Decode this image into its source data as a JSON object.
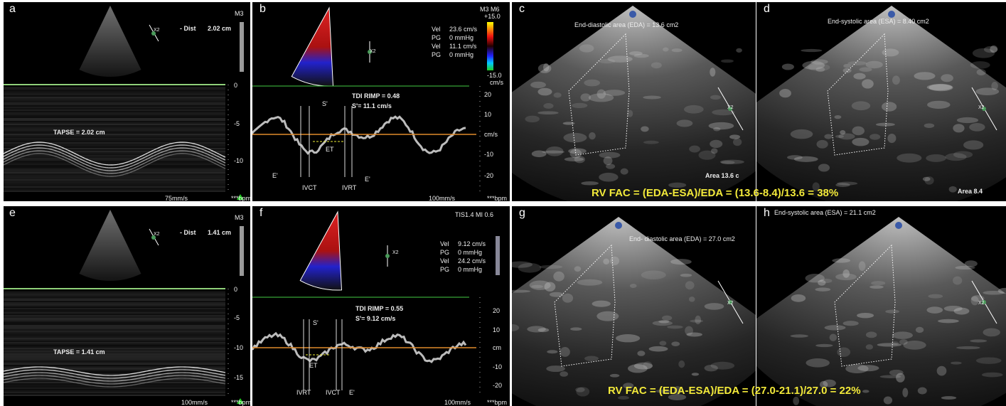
{
  "panels": [
    {
      "label": "a",
      "mode": "M3",
      "dist_label": "- Dist",
      "dist_value": "2.02 cm",
      "x2": "X2",
      "measure": "TAPSE = 2.02 cm",
      "depth_ticks": [
        "0",
        "-5",
        "-10"
      ],
      "sweep": "75mm/s",
      "bpm": "***bpm"
    },
    {
      "label": "b",
      "mode": "M3 M6",
      "scale_top": "+15.0",
      "scale_bottom": "-15.0",
      "scale_unit": "cm/s",
      "x2": "X2",
      "readouts": [
        [
          "Vel",
          "23.6 cm/s"
        ],
        [
          "PG",
          "0 mmHg"
        ],
        [
          "Vel",
          "11.1 cm/s"
        ],
        [
          "PG",
          "0 mmHg"
        ]
      ],
      "tdi": "TDI RIMP = 0.48",
      "s_prime": "S'= 11.1 cm/s",
      "waves": [
        "S'",
        "E'",
        "IVCT",
        "ET",
        "IVRT",
        "E'"
      ],
      "vel_ticks": [
        "20",
        "10",
        "cm/s",
        "-10",
        "-20"
      ],
      "sweep": "100mm/s",
      "bpm": "***bpm"
    },
    {
      "label": "c",
      "area_title": "End-diastolic area (EDA) = 13.6 cm2",
      "area": "Area 13.6 c",
      "x2": "X2"
    },
    {
      "label": "d",
      "area_title": "End-systolic area (ESA) = 8.40 cm2",
      "area": "Area 8.4",
      "x2": "X2"
    },
    {
      "label": "e",
      "mode": "M3",
      "dist_label": "- Dist",
      "dist_value": "1.41 cm",
      "x2": "X2",
      "measure": "TAPSE = 1.41 cm",
      "depth_ticks": [
        "0",
        "-5",
        "-10",
        "-15"
      ],
      "sweep": "100mm/s",
      "bpm": "***bpm"
    },
    {
      "label": "f",
      "mode": "TIS1.4  MI 0.6",
      "x2": "X2",
      "readouts": [
        [
          "Vel",
          "9.12 cm/s"
        ],
        [
          "PG",
          "0 mmHg"
        ],
        [
          "Vel",
          "24.2 cm/s"
        ],
        [
          "PG",
          "0 mmHg"
        ]
      ],
      "tdi": "TDI RIMP = 0.55",
      "s_prime": "S'= 9.12 cm/s",
      "waves": [
        "S'",
        "ET",
        "IVRT",
        "IVCT",
        "E'"
      ],
      "vel_ticks": [
        "20",
        "10",
        "cm",
        "-10",
        "-20"
      ],
      "sweep": "100mm/s",
      "bpm": "***bpm"
    },
    {
      "label": "g",
      "area_title": "End- diastolic area (EDA) = 27.0 cm2",
      "x2": "X2"
    },
    {
      "label": "h",
      "area_title": "End-systolic area (ESA) = 21.1 cm2",
      "x2": "X2"
    }
  ],
  "rv_fac": [
    "RV FAC = (EDA-ESA)/EDA = (13.6-8.4)/13.6 = 38%",
    "RV FAC = (EDA-ESA)/EDA = (27.0-21.1)/27.0 = 22%"
  ]
}
